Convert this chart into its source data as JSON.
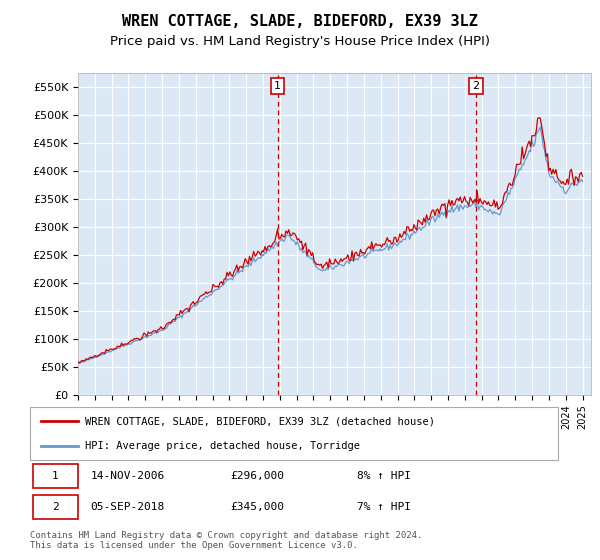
{
  "title": "WREN COTTAGE, SLADE, BIDEFORD, EX39 3LZ",
  "subtitle": "Price paid vs. HM Land Registry's House Price Index (HPI)",
  "ylabel_ticks": [
    0,
    50000,
    100000,
    150000,
    200000,
    250000,
    300000,
    350000,
    400000,
    450000,
    500000,
    550000
  ],
  "ylabel_labels": [
    "£0",
    "£50K",
    "£100K",
    "£150K",
    "£200K",
    "£250K",
    "£300K",
    "£350K",
    "£400K",
    "£450K",
    "£500K",
    "£550K"
  ],
  "ylim_max": 575000,
  "xlim_start": 1995.0,
  "xlim_end": 2025.5,
  "background_color": "#ffffff",
  "plot_bg_color": "#dce9f5",
  "grid_color": "#ffffff",
  "line1_color": "#cc0000",
  "line2_color": "#6699cc",
  "vline_color": "#cc0000",
  "vline1_x": 2006.87,
  "vline2_x": 2018.67,
  "marker1_price": 296000,
  "marker2_price": 345000,
  "table_row1": [
    "1",
    "14-NOV-2006",
    "£296,000",
    "8% ↑ HPI"
  ],
  "table_row2": [
    "2",
    "05-SEP-2018",
    "£345,000",
    "7% ↑ HPI"
  ],
  "legend_line1": "WREN COTTAGE, SLADE, BIDEFORD, EX39 3LZ (detached house)",
  "legend_line2": "HPI: Average price, detached house, Torridge",
  "footer": "Contains HM Land Registry data © Crown copyright and database right 2024.\nThis data is licensed under the Open Government Licence v3.0.",
  "title_fontsize": 11,
  "subtitle_fontsize": 9.5
}
